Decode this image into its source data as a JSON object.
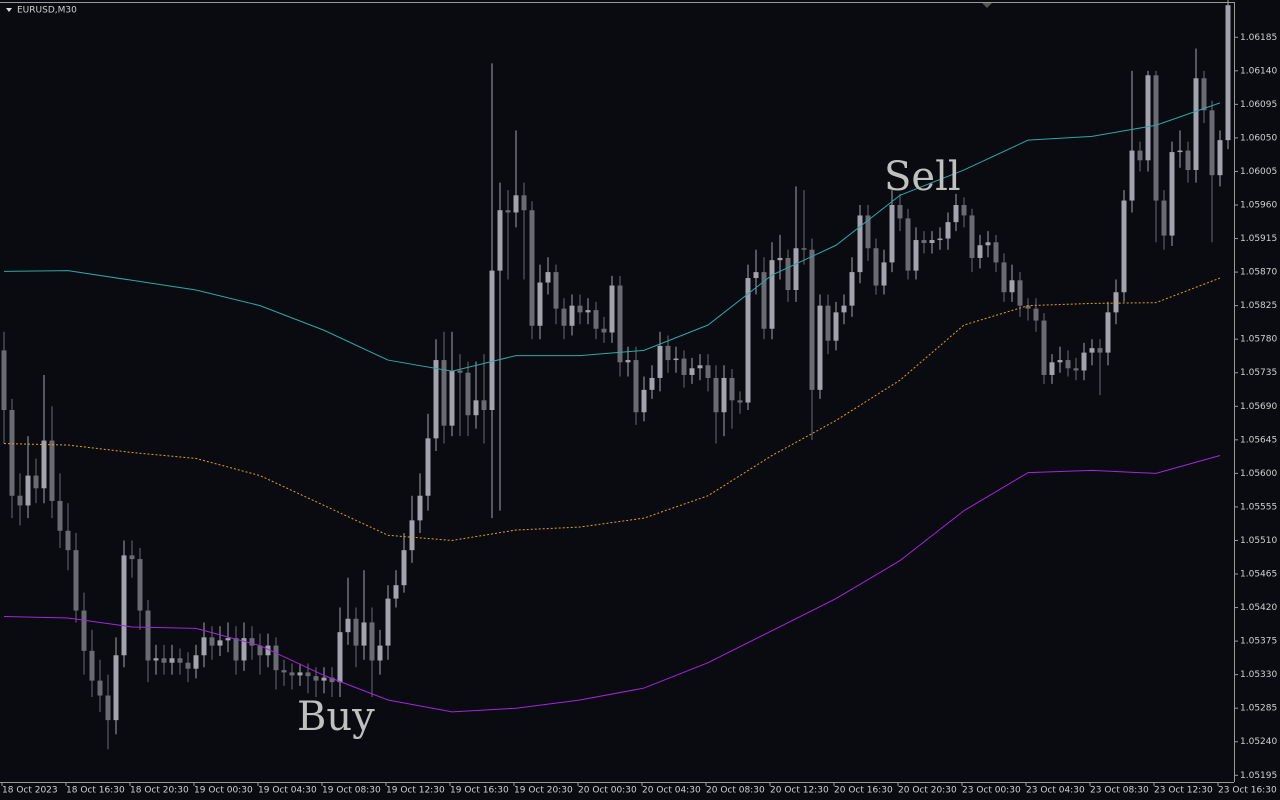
{
  "chart_data": {
    "type": "candlestick",
    "title": "EURUSD,M30",
    "categories": [
      "18 Oct 2023",
      null,
      null,
      null,
      null,
      null,
      null,
      null,
      "18 Oct 16:30",
      null,
      null,
      null,
      null,
      null,
      null,
      null,
      "18 Oct 20:30",
      null,
      null,
      null,
      null,
      null,
      null,
      null,
      "19 Oct 00:30",
      null,
      null,
      null,
      null,
      null,
      null,
      null,
      "19 Oct 04:30",
      null,
      null,
      null,
      null,
      null,
      null,
      null,
      "19 Oct 08:30",
      null,
      null,
      null,
      null,
      null,
      null,
      null,
      "19 Oct 12:30",
      null,
      null,
      null,
      null,
      null,
      null,
      null,
      "19 Oct 16:30",
      null,
      null,
      null,
      null,
      null,
      null,
      null,
      "19 Oct 20:30",
      null,
      null,
      null,
      null,
      null,
      null,
      null,
      "20 Oct 00:30",
      null,
      null,
      null,
      null,
      null,
      null,
      null,
      "20 Oct 04:30",
      null,
      null,
      null,
      null,
      null,
      null,
      null,
      "20 Oct 08:30",
      null,
      null,
      null,
      null,
      null,
      null,
      null,
      "20 Oct 12:30",
      null,
      null,
      null,
      null,
      null,
      null,
      null,
      "20 Oct 16:30",
      null,
      null,
      null,
      null,
      null,
      null,
      null,
      "20 Oct 20:30",
      null,
      null,
      null,
      null,
      null,
      null,
      null,
      "23 Oct 00:30",
      null,
      null,
      null,
      null,
      null,
      null,
      null,
      "23 Oct 04:30",
      null,
      null,
      null,
      null,
      null,
      null,
      null,
      "23 Oct 08:30",
      null,
      null,
      null,
      null,
      null,
      null,
      null,
      "23 Oct 12:30",
      null,
      null,
      null,
      null,
      null,
      null,
      null,
      "23 Oct 16:30",
      null
    ],
    "candles": [
      [
        1.05765,
        1.0579,
        1.0564,
        1.05685
      ],
      [
        1.05685,
        1.057,
        1.0554,
        1.0557
      ],
      [
        1.0557,
        1.056,
        1.0553,
        1.05557
      ],
      [
        1.05557,
        1.0565,
        1.0554,
        1.05597
      ],
      [
        1.05597,
        1.0562,
        1.0556,
        1.0558
      ],
      [
        1.0558,
        1.05732,
        1.0556,
        1.05644
      ],
      [
        1.05644,
        1.0569,
        1.0554,
        1.05563
      ],
      [
        1.05563,
        1.056,
        1.055,
        1.05523
      ],
      [
        1.05523,
        1.0556,
        1.0547,
        1.05497
      ],
      [
        1.05497,
        1.0552,
        1.054,
        1.05416
      ],
      [
        1.05416,
        1.0544,
        1.0533,
        1.05362
      ],
      [
        1.05362,
        1.0539,
        1.053,
        1.05322
      ],
      [
        1.05322,
        1.0535,
        1.0528,
        1.05302
      ],
      [
        1.05302,
        1.0533,
        1.0523,
        1.05269
      ],
      [
        1.05269,
        1.0538,
        1.0525,
        1.05356
      ],
      [
        1.05356,
        1.0551,
        1.0534,
        1.0549
      ],
      [
        1.0549,
        1.0551,
        1.0546,
        1.05485
      ],
      [
        1.05485,
        1.055,
        1.0539,
        1.05416
      ],
      [
        1.05416,
        1.0543,
        1.0532,
        1.05349
      ],
      [
        1.05349,
        1.0537,
        1.0533,
        1.05352
      ],
      [
        1.05352,
        1.0537,
        1.0533,
        1.05346
      ],
      [
        1.05346,
        1.0537,
        1.0533,
        1.05352
      ],
      [
        1.05352,
        1.05365,
        1.0533,
        1.05346
      ],
      [
        1.05346,
        1.0536,
        1.0532,
        1.05338
      ],
      [
        1.05338,
        1.0537,
        1.05325,
        1.05356
      ],
      [
        1.05356,
        1.054,
        1.0534,
        1.0538
      ],
      [
        1.0538,
        1.05395,
        1.0535,
        1.05369
      ],
      [
        1.05369,
        1.05395,
        1.05355,
        1.05376
      ],
      [
        1.05376,
        1.054,
        1.0536,
        1.05379
      ],
      [
        1.05379,
        1.05395,
        1.0533,
        1.05349
      ],
      [
        1.05349,
        1.054,
        1.05335,
        1.05379
      ],
      [
        1.05379,
        1.05395,
        1.0535,
        1.05369
      ],
      [
        1.05369,
        1.05385,
        1.0533,
        1.05356
      ],
      [
        1.05356,
        1.05385,
        1.0534,
        1.05369
      ],
      [
        1.05369,
        1.0538,
        1.0531,
        1.05336
      ],
      [
        1.05336,
        1.0535,
        1.05315,
        1.05333
      ],
      [
        1.05333,
        1.05345,
        1.0531,
        1.05329
      ],
      [
        1.05329,
        1.05345,
        1.05315,
        1.05333
      ],
      [
        1.05333,
        1.05345,
        1.05305,
        1.05328
      ],
      [
        1.05328,
        1.0534,
        1.053,
        1.05322
      ],
      [
        1.05322,
        1.0534,
        1.05305,
        1.05326
      ],
      [
        1.05326,
        1.0534,
        1.053,
        1.0532
      ],
      [
        1.0532,
        1.0542,
        1.053,
        1.05387
      ],
      [
        1.05387,
        1.0546,
        1.0537,
        1.05405
      ],
      [
        1.05405,
        1.0542,
        1.0534,
        1.05369
      ],
      [
        1.05369,
        1.0547,
        1.0535,
        1.054
      ],
      [
        1.054,
        1.0542,
        1.053,
        1.05349
      ],
      [
        1.05349,
        1.0539,
        1.0533,
        1.05369
      ],
      [
        1.05369,
        1.0545,
        1.0535,
        1.05432
      ],
      [
        1.05432,
        1.0547,
        1.0542,
        1.0545
      ],
      [
        1.0545,
        1.0552,
        1.0544,
        1.05497
      ],
      [
        1.05497,
        1.0557,
        1.0548,
        1.05537
      ],
      [
        1.05537,
        1.056,
        1.0552,
        1.0557
      ],
      [
        1.0557,
        1.0568,
        1.0555,
        1.05647
      ],
      [
        1.05647,
        1.0578,
        1.0563,
        1.05752
      ],
      [
        1.05752,
        1.0579,
        1.0564,
        1.05664
      ],
      [
        1.05664,
        1.0579,
        1.0565,
        1.05738
      ],
      [
        1.05738,
        1.0576,
        1.0565,
        1.05735
      ],
      [
        1.05735,
        1.0575,
        1.0565,
        1.05678
      ],
      [
        1.05678,
        1.0575,
        1.0566,
        1.05698
      ],
      [
        1.05698,
        1.0576,
        1.0564,
        1.05685
      ],
      [
        1.05685,
        1.0615,
        1.0554,
        1.05872
      ],
      [
        1.05872,
        1.0599,
        1.0555,
        1.05953
      ],
      [
        1.05953,
        1.0598,
        1.0586,
        1.0595
      ],
      [
        1.0595,
        1.0606,
        1.0593,
        1.05973
      ],
      [
        1.05973,
        1.0599,
        1.0586,
        1.05953
      ],
      [
        1.05953,
        1.05965,
        1.0578,
        1.05798
      ],
      [
        1.05798,
        1.0588,
        1.0578,
        1.05856
      ],
      [
        1.05856,
        1.0589,
        1.0584,
        1.0587
      ],
      [
        1.0587,
        1.0588,
        1.058,
        1.05821
      ],
      [
        1.05821,
        1.05835,
        1.0578,
        1.05798
      ],
      [
        1.05798,
        1.0584,
        1.05785,
        1.05825
      ],
      [
        1.05825,
        1.0584,
        1.058,
        1.05816
      ],
      [
        1.05816,
        1.05835,
        1.058,
        1.05819
      ],
      [
        1.05819,
        1.0583,
        1.0578,
        1.05794
      ],
      [
        1.05794,
        1.0581,
        1.05775,
        1.05789
      ],
      [
        1.05789,
        1.05865,
        1.05775,
        1.05852
      ],
      [
        1.05852,
        1.05865,
        1.0573,
        1.05749
      ],
      [
        1.05749,
        1.0577,
        1.0573,
        1.05752
      ],
      [
        1.05752,
        1.0577,
        1.05665,
        1.05682
      ],
      [
        1.05682,
        1.0573,
        1.0567,
        1.05712
      ],
      [
        1.05712,
        1.05745,
        1.057,
        1.05728
      ],
      [
        1.05728,
        1.0579,
        1.0571,
        1.05771
      ],
      [
        1.05771,
        1.05785,
        1.05735,
        1.05752
      ],
      [
        1.05752,
        1.0577,
        1.05735,
        1.05754
      ],
      [
        1.05754,
        1.05765,
        1.05715,
        1.05732
      ],
      [
        1.05732,
        1.05755,
        1.0572,
        1.05741
      ],
      [
        1.05741,
        1.0576,
        1.05725,
        1.05745
      ],
      [
        1.05745,
        1.0576,
        1.0571,
        1.05728
      ],
      [
        1.05728,
        1.05745,
        1.0564,
        1.05682
      ],
      [
        1.05682,
        1.05745,
        1.0565,
        1.05728
      ],
      [
        1.05728,
        1.0574,
        1.0566,
        1.05698
      ],
      [
        1.05698,
        1.0571,
        1.0568,
        1.05695
      ],
      [
        1.05695,
        1.0588,
        1.05685,
        1.05862
      ],
      [
        1.05862,
        1.059,
        1.0584,
        1.0587
      ],
      [
        1.0587,
        1.0589,
        1.0578,
        1.05794
      ],
      [
        1.05794,
        1.0591,
        1.0578,
        1.05886
      ],
      [
        1.05886,
        1.0592,
        1.0586,
        1.05889
      ],
      [
        1.05889,
        1.059,
        1.0583,
        1.05846
      ],
      [
        1.05846,
        1.05985,
        1.0583,
        1.05902
      ],
      [
        1.05902,
        1.0598,
        1.0588,
        1.059
      ],
      [
        1.059,
        1.05915,
        1.05645,
        1.05712
      ],
      [
        1.05712,
        1.0584,
        1.057,
        1.05825
      ],
      [
        1.05825,
        1.0584,
        1.0576,
        1.05778
      ],
      [
        1.05778,
        1.0583,
        1.05765,
        1.05816
      ],
      [
        1.05816,
        1.0584,
        1.058,
        1.05825
      ],
      [
        1.05825,
        1.0589,
        1.0581,
        1.0587
      ],
      [
        1.0587,
        1.0596,
        1.05855,
        1.05946
      ],
      [
        1.05946,
        1.0596,
        1.05885,
        1.05902
      ],
      [
        1.05902,
        1.05915,
        1.0584,
        1.05852
      ],
      [
        1.05852,
        1.059,
        1.0584,
        1.05883
      ],
      [
        1.05883,
        1.0598,
        1.0587,
        1.0596
      ],
      [
        1.0596,
        1.05975,
        1.05925,
        1.05942
      ],
      [
        1.05942,
        1.05955,
        1.0586,
        1.05872
      ],
      [
        1.05872,
        1.0593,
        1.0586,
        1.05913
      ],
      [
        1.05913,
        1.05925,
        1.05895,
        1.05909
      ],
      [
        1.05909,
        1.05925,
        1.05895,
        1.05913
      ],
      [
        1.05913,
        1.0593,
        1.059,
        1.05915
      ],
      [
        1.05915,
        1.0595,
        1.059,
        1.05937
      ],
      [
        1.05937,
        1.05975,
        1.05925,
        1.0596
      ],
      [
        1.0596,
        1.0597,
        1.0593,
        1.05946
      ],
      [
        1.05946,
        1.05955,
        1.0587,
        1.05889
      ],
      [
        1.05889,
        1.0592,
        1.05875,
        1.05906
      ],
      [
        1.05906,
        1.05925,
        1.0589,
        1.0591
      ],
      [
        1.0591,
        1.0592,
        1.0587,
        1.05883
      ],
      [
        1.05883,
        1.05895,
        1.0583,
        1.05843
      ],
      [
        1.05843,
        1.0588,
        1.0583,
        1.05859
      ],
      [
        1.05859,
        1.0587,
        1.0581,
        1.05825
      ],
      [
        1.05825,
        1.05835,
        1.05805,
        1.05821
      ],
      [
        1.05821,
        1.05835,
        1.0579,
        1.05805
      ],
      [
        1.05805,
        1.05815,
        1.0572,
        1.05732
      ],
      [
        1.05732,
        1.0576,
        1.0572,
        1.05749
      ],
      [
        1.05749,
        1.0577,
        1.05735,
        1.05752
      ],
      [
        1.05752,
        1.05765,
        1.0573,
        1.05741
      ],
      [
        1.05741,
        1.05755,
        1.05725,
        1.05738
      ],
      [
        1.05738,
        1.05775,
        1.05725,
        1.05762
      ],
      [
        1.05762,
        1.0578,
        1.05745,
        1.05768
      ],
      [
        1.05768,
        1.0578,
        1.05705,
        1.05762
      ],
      [
        1.05762,
        1.0583,
        1.05745,
        1.05816
      ],
      [
        1.05816,
        1.0586,
        1.058,
        1.05843
      ],
      [
        1.05843,
        1.0598,
        1.0583,
        1.05966
      ],
      [
        1.05966,
        1.0614,
        1.0595,
        1.06033
      ],
      [
        1.06033,
        1.06045,
        1.06005,
        1.0602
      ],
      [
        1.0602,
        1.0614,
        1.06005,
        1.06134
      ],
      [
        1.06134,
        1.0614,
        1.0591,
        1.05966
      ],
      [
        1.05966,
        1.0598,
        1.059,
        1.05919
      ],
      [
        1.05919,
        1.06045,
        1.05905,
        1.06031
      ],
      [
        1.06031,
        1.0606,
        1.0601,
        1.06033
      ],
      [
        1.06033,
        1.06045,
        1.0599,
        1.06007
      ],
      [
        1.06007,
        1.0617,
        1.0599,
        1.0613
      ],
      [
        1.0613,
        1.0614,
        1.0607,
        1.06087
      ],
      [
        1.06087,
        1.061,
        1.0591,
        1.06
      ],
      [
        1.06,
        1.0606,
        1.05985,
        1.06047
      ],
      [
        1.06047,
        1.06235,
        1.06035,
        1.06228
      ]
    ],
    "up_color": "#a3a3ad",
    "down_color": "#6b6b73",
    "series": [
      {
        "color": "#2aa8a8",
        "style": "solid",
        "x": [
          0,
          8,
          16,
          24,
          32,
          40,
          48,
          56,
          64,
          72,
          80,
          88,
          96,
          104,
          112,
          120,
          128,
          136,
          144,
          152
        ],
        "values": [
          1.05871,
          1.05872,
          1.05859,
          1.05846,
          1.05825,
          1.05792,
          1.05752,
          1.05737,
          1.05758,
          1.05758,
          1.05765,
          1.05799,
          1.05866,
          1.05906,
          1.05973,
          1.06007,
          1.06047,
          1.06052,
          1.06067,
          1.06097
        ]
      },
      {
        "color": "#e0a020",
        "style": "dotted",
        "x": [
          0,
          8,
          16,
          24,
          32,
          40,
          48,
          56,
          64,
          72,
          80,
          88,
          96,
          104,
          112,
          120,
          128,
          136,
          144,
          152
        ],
        "values": [
          1.0564,
          1.05638,
          1.05628,
          1.0562,
          1.05597,
          1.05557,
          1.05517,
          1.0551,
          1.05524,
          1.05528,
          1.0554,
          1.0557,
          1.05624,
          1.05671,
          1.05725,
          1.05799,
          1.05825,
          1.05828,
          1.05829,
          1.05862
        ]
      },
      {
        "color": "#a424e0",
        "style": "solid",
        "x": [
          0,
          8,
          16,
          24,
          32,
          40,
          48,
          56,
          64,
          72,
          80,
          88,
          96,
          104,
          112,
          120,
          128,
          136,
          144,
          152
        ],
        "values": [
          1.05408,
          1.05406,
          1.05394,
          1.05392,
          1.05369,
          1.05329,
          1.05296,
          1.0528,
          1.05285,
          1.05296,
          1.05312,
          1.05346,
          1.05389,
          1.05432,
          1.05483,
          1.0555,
          1.05601,
          1.05604,
          1.056,
          1.05624
        ]
      }
    ],
    "ylim": [
      1.05186,
      1.06235
    ],
    "yticks": [
      1.06185,
      {
        "value": 1.0614,
        "label": "1.06140"
      },
      1.06095,
      {
        "value": 1.0605,
        "label": "1.06050"
      },
      1.06005,
      {
        "value": 1.0596,
        "label": "1.05960"
      },
      1.05915,
      {
        "value": 1.0587,
        "label": "1.05870"
      },
      1.05825,
      {
        "value": 1.0578,
        "label": "1.05780"
      },
      1.05735,
      {
        "value": 1.0569,
        "label": "1.05690"
      },
      1.05645,
      {
        "value": 1.056,
        "label": "1.05600"
      },
      1.05555,
      {
        "value": 1.0551,
        "label": "1.05510"
      },
      1.05465,
      {
        "value": 1.0542,
        "label": "1.05420"
      },
      1.05375,
      {
        "value": 1.0533,
        "label": "1.05330"
      },
      1.05285,
      {
        "value": 1.0524,
        "label": "1.05240"
      },
      1.05195
    ],
    "annotations": [
      "Buy",
      "Sell"
    ]
  }
}
